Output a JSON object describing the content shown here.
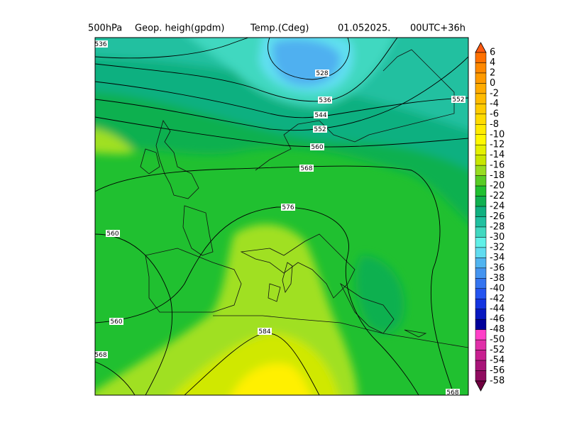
{
  "header": {
    "parts": [
      "500hPa",
      "Geop. heigh(gpdm)",
      "Temp.(Cdeg)",
      "01.052025.",
      "00UTC+36h"
    ]
  },
  "contour_labels": [
    "536",
    "528",
    "536",
    "552",
    "544",
    "552",
    "560",
    "568",
    "576",
    "560",
    "560",
    "584",
    "568",
    "568"
  ],
  "colorbar": {
    "labels": [
      "6",
      "4",
      "2",
      "0",
      "-2",
      "-4",
      "-6",
      "-8",
      "-10",
      "-12",
      "-14",
      "-16",
      "-18",
      "-20",
      "-22",
      "-24",
      "-26",
      "-28",
      "-30",
      "-32",
      "-34",
      "-36",
      "-38",
      "-40",
      "-42",
      "-44",
      "-46",
      "-48",
      "-50",
      "-52",
      "-54",
      "-56",
      "-58"
    ]
  }
}
